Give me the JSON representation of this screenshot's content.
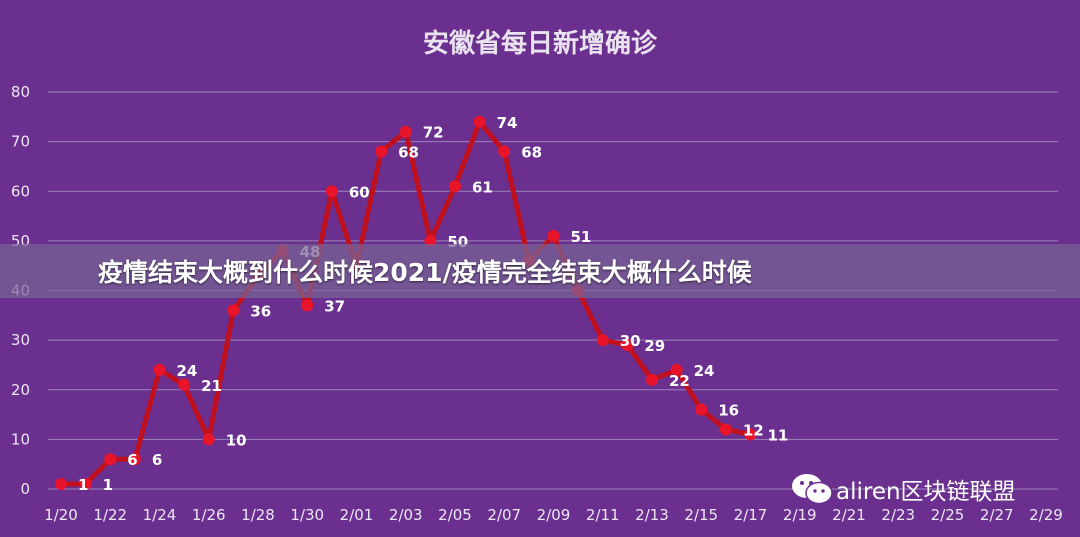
{
  "banner": {
    "text": "疫情结束大概到什么时候2021/疫情完全结束大概什么时候"
  },
  "watermark": {
    "text": "aliren区块链联盟",
    "icon": "wechat-icon"
  },
  "colors": {
    "background": "#6a2f8f",
    "line": "#c0101e",
    "marker": "#e8142a",
    "grid": "#9b86b8"
  },
  "chart_data": {
    "type": "line",
    "title": "安徽省每日新增确诊",
    "xlabel": "",
    "ylabel": "",
    "ylim": [
      0,
      80
    ],
    "yticks": [
      0,
      10,
      20,
      30,
      40,
      50,
      60,
      70,
      80
    ],
    "xtick_labels": [
      "1/20",
      "1/22",
      "1/24",
      "1/26",
      "1/28",
      "1/30",
      "2/01",
      "2/03",
      "2/05",
      "2/07",
      "2/09",
      "2/11",
      "2/13",
      "2/15",
      "2/17",
      "2/19",
      "2/21",
      "2/23",
      "2/25",
      "2/27",
      "2/29"
    ],
    "grid": true,
    "series": [
      {
        "x": [
          "1/20",
          "1/21",
          "1/22",
          "1/23",
          "1/24",
          "1/25",
          "1/26",
          "1/27",
          "1/28",
          "1/29",
          "1/30",
          "1/31",
          "2/01",
          "2/02",
          "2/03",
          "2/04",
          "2/05",
          "2/06",
          "2/07",
          "2/08",
          "2/09",
          "2/10",
          "2/11",
          "2/12",
          "2/13",
          "2/14",
          "2/15",
          "2/16"
        ],
        "values": [
          1,
          1,
          6,
          6,
          24,
          21,
          10,
          36,
          43,
          48,
          37,
          60,
          45,
          68,
          72,
          50,
          61,
          74,
          68,
          46,
          51,
          40,
          30,
          29,
          22,
          24,
          16,
          12
        ],
        "labels": [
          "1",
          "1",
          "6",
          "6",
          "24",
          "21",
          "10",
          "36",
          "",
          "48",
          "37",
          "60",
          "",
          "68",
          "72",
          "50",
          "61",
          "74",
          "68",
          "",
          "51",
          "",
          "30",
          "29",
          "22",
          "24",
          "16",
          "12"
        ]
      },
      {
        "x": [
          "2/16",
          "2/17"
        ],
        "values": [
          12,
          11
        ],
        "labels": [
          "",
          "11"
        ]
      }
    ]
  }
}
